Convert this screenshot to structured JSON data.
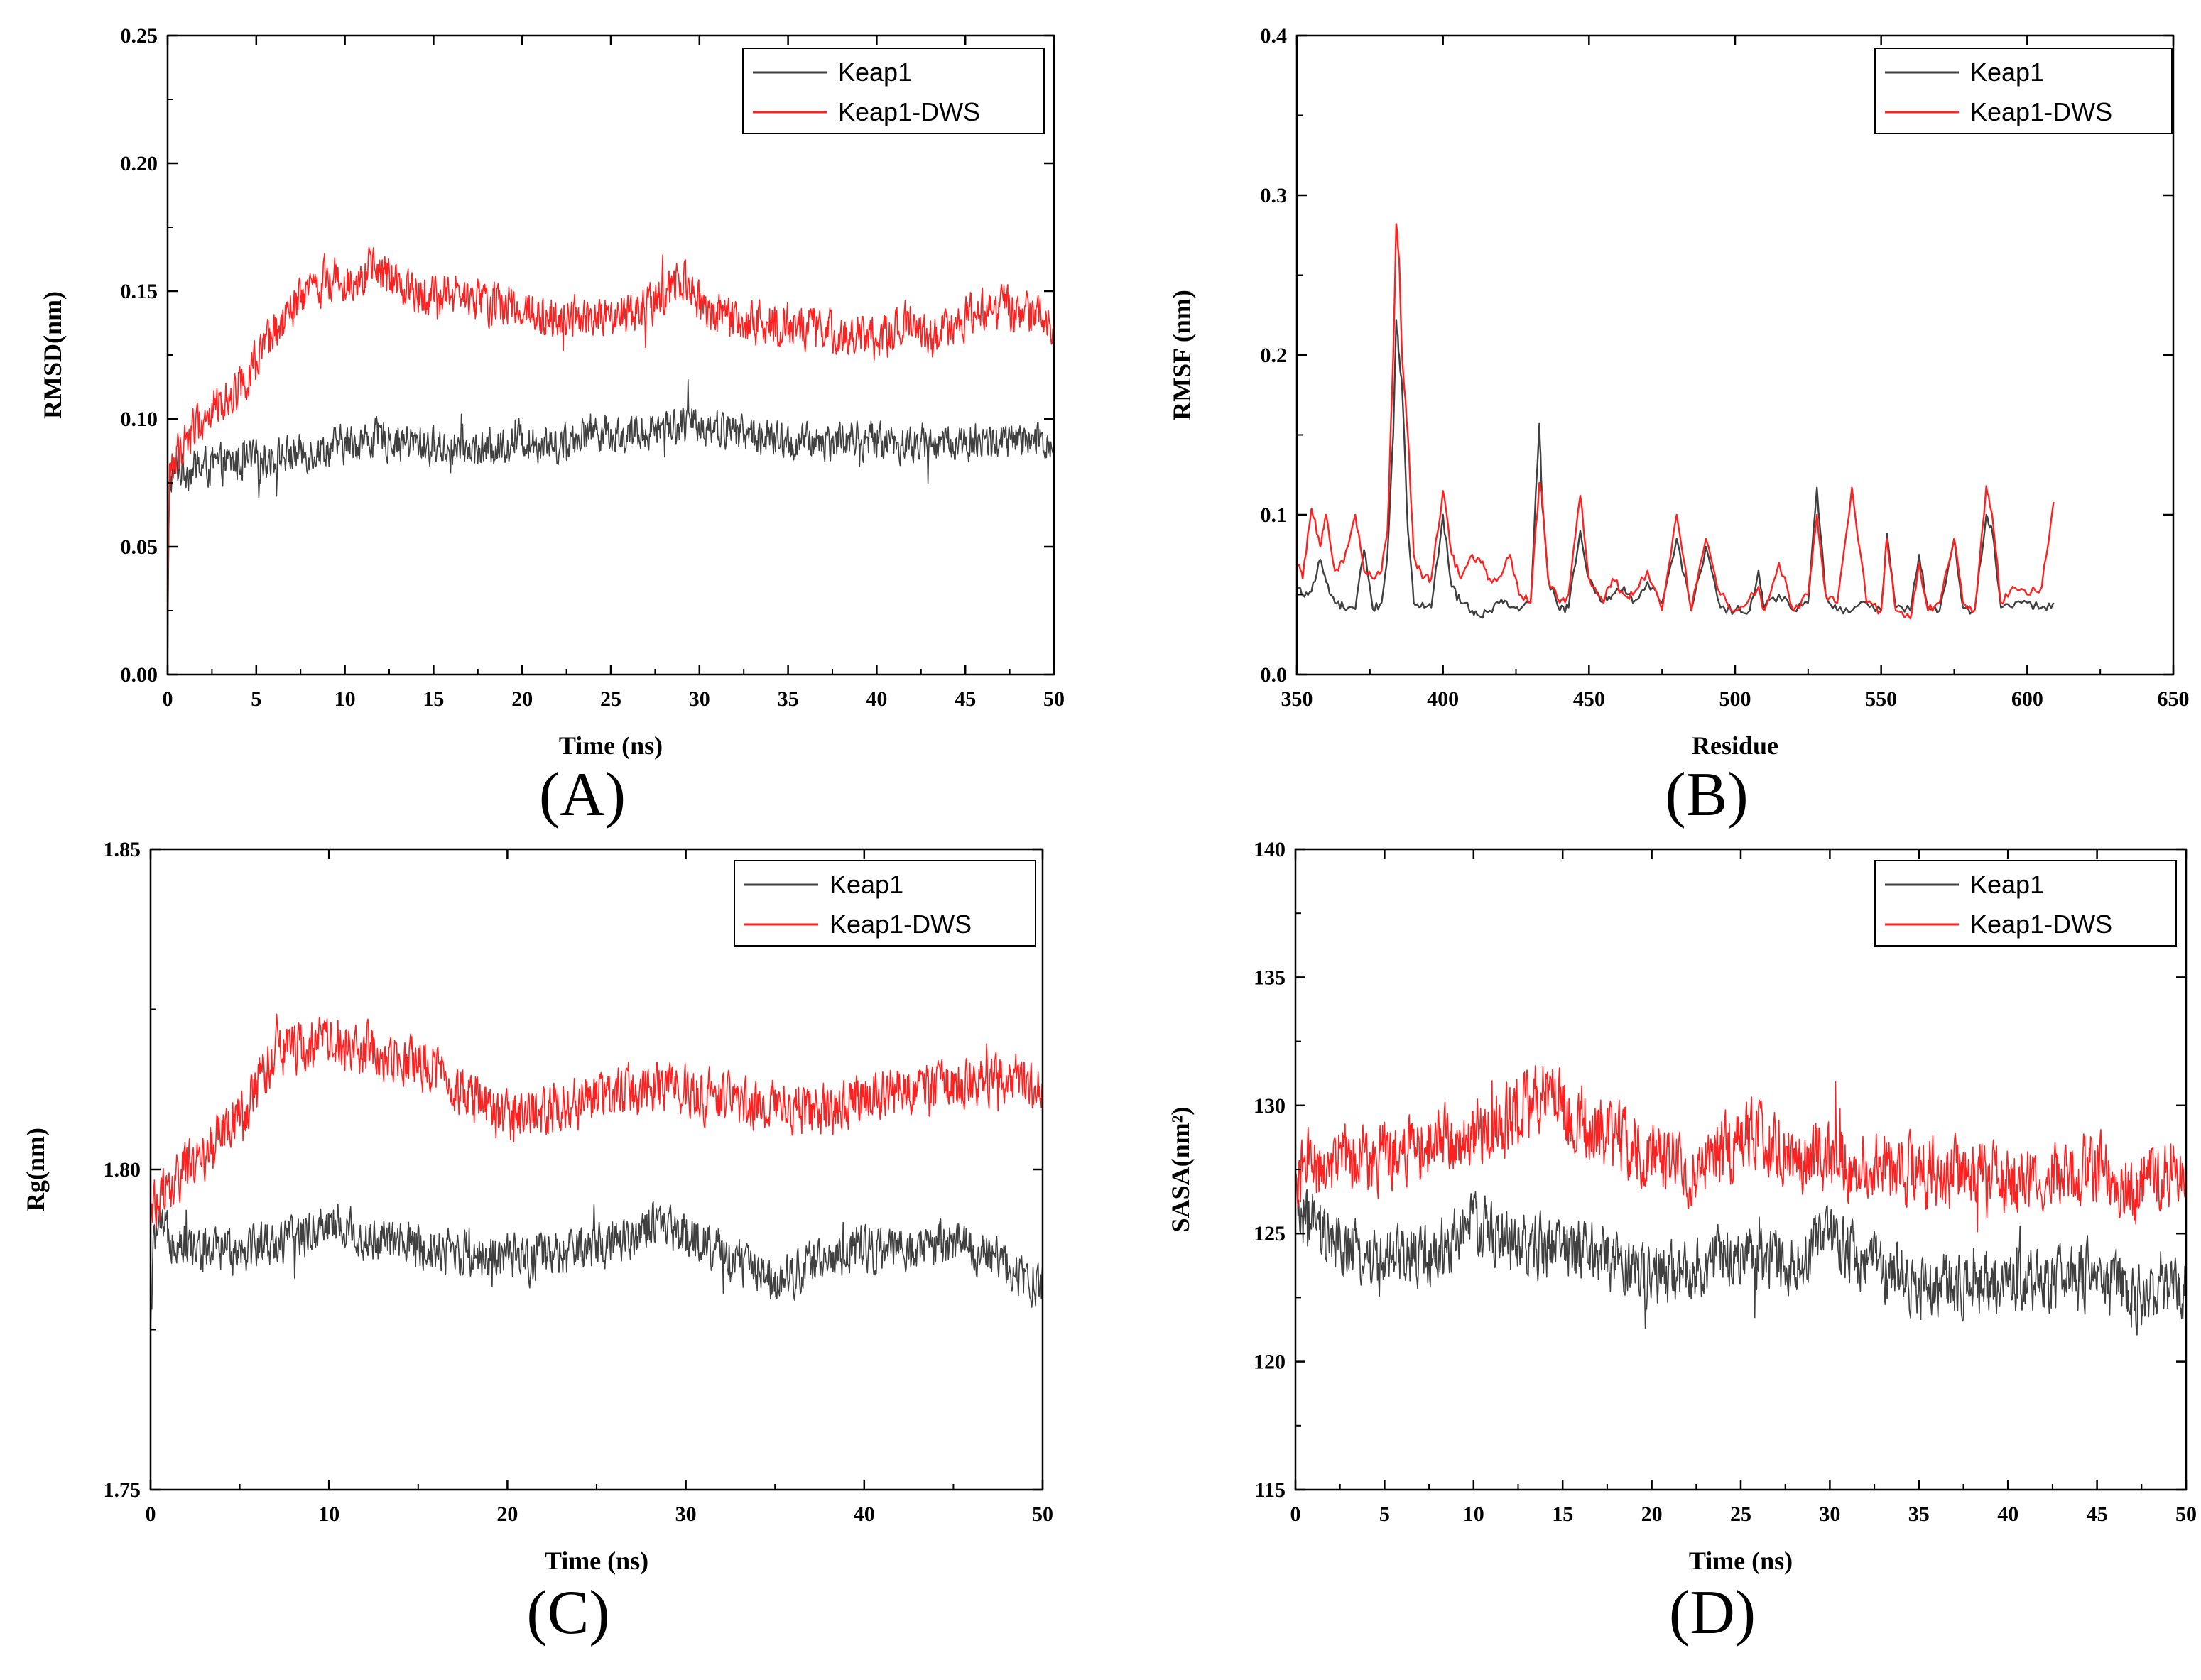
{
  "colors": {
    "keap1": "#404040",
    "keap1_dws": "#ff2020",
    "axis": "#000000"
  },
  "chart_data": [
    {
      "panel": "A",
      "panel_label": "(A)",
      "type": "line",
      "title": "",
      "xlabel": "Time (ns)",
      "ylabel": "RMSD(nm)",
      "xlim": [
        0,
        50
      ],
      "ylim": [
        0,
        0.25
      ],
      "xticks": [
        0,
        5,
        10,
        15,
        20,
        25,
        30,
        35,
        40,
        45,
        50
      ],
      "yticks": [
        "0.00",
        "0.05",
        "0.10",
        "0.15",
        "0.20",
        "0.25"
      ],
      "legend": "top-right",
      "series": [
        {
          "name": "Keap1",
          "color": "#404040",
          "noise": 0.0065,
          "x": [
            0,
            0.1,
            0.5,
            1,
            2,
            3,
            5,
            8,
            10,
            12,
            15,
            18,
            20,
            22,
            24,
            26,
            28,
            30,
            33,
            35,
            38,
            40,
            42,
            45,
            48,
            50
          ],
          "y": [
            0,
            0.075,
            0.081,
            0.08,
            0.081,
            0.082,
            0.084,
            0.087,
            0.09,
            0.093,
            0.089,
            0.088,
            0.092,
            0.09,
            0.096,
            0.093,
            0.098,
            0.098,
            0.094,
            0.09,
            0.092,
            0.092,
            0.09,
            0.091,
            0.091,
            0.09
          ]
        },
        {
          "name": "Keap1-DWS",
          "color": "#ff2020",
          "noise": 0.0075,
          "x": [
            0,
            0.1,
            0.5,
            1,
            2,
            3,
            4,
            5,
            6,
            7,
            8,
            9,
            10,
            11,
            12,
            13,
            15,
            17,
            20,
            22,
            25,
            28,
            29,
            30,
            32,
            35,
            38,
            40,
            42,
            43,
            45,
            47,
            50
          ],
          "y": [
            0,
            0.08,
            0.085,
            0.092,
            0.1,
            0.106,
            0.113,
            0.122,
            0.132,
            0.142,
            0.15,
            0.155,
            0.155,
            0.157,
            0.158,
            0.152,
            0.149,
            0.147,
            0.143,
            0.14,
            0.138,
            0.146,
            0.155,
            0.145,
            0.137,
            0.137,
            0.134,
            0.13,
            0.14,
            0.13,
            0.141,
            0.144,
            0.137
          ]
        }
      ]
    },
    {
      "panel": "B",
      "panel_label": "(B)",
      "type": "line",
      "title": "",
      "xlabel": "Residue",
      "ylabel": "RMSF (nm)",
      "xlim": [
        350,
        650
      ],
      "ylim": [
        0,
        0.4
      ],
      "xticks": [
        350,
        400,
        450,
        500,
        550,
        600,
        650
      ],
      "yticks": [
        "0.0",
        "0.1",
        "0.2",
        "0.3",
        "0.4"
      ],
      "legend": "top-right",
      "series": [
        {
          "name": "Keap1",
          "color": "#404040",
          "noise": 0,
          "x": [
            350,
            352,
            355,
            358,
            360,
            363,
            366,
            370,
            373,
            376,
            379,
            381,
            383,
            384,
            385,
            386,
            388,
            390,
            393,
            396,
            400,
            403,
            406,
            410,
            413,
            416,
            420,
            423,
            426,
            430,
            433,
            434,
            436,
            440,
            443,
            447,
            450,
            455,
            458,
            462,
            465,
            470,
            475,
            480,
            485,
            490,
            495,
            500,
            505,
            508,
            510,
            515,
            520,
            525,
            528,
            531,
            535,
            540,
            545,
            550,
            552,
            555,
            560,
            563,
            566,
            570,
            575,
            578,
            582,
            586,
            588,
            591,
            595,
            600,
            605,
            609
          ],
          "y": [
            0.055,
            0.05,
            0.052,
            0.072,
            0.058,
            0.045,
            0.042,
            0.041,
            0.078,
            0.041,
            0.045,
            0.075,
            0.15,
            0.222,
            0.2,
            0.18,
            0.09,
            0.045,
            0.045,
            0.042,
            0.1,
            0.055,
            0.045,
            0.04,
            0.036,
            0.04,
            0.047,
            0.042,
            0.04,
            0.045,
            0.157,
            0.105,
            0.06,
            0.04,
            0.042,
            0.09,
            0.06,
            0.045,
            0.05,
            0.055,
            0.045,
            0.058,
            0.045,
            0.085,
            0.04,
            0.08,
            0.042,
            0.04,
            0.04,
            0.065,
            0.042,
            0.05,
            0.04,
            0.045,
            0.117,
            0.05,
            0.04,
            0.04,
            0.045,
            0.04,
            0.088,
            0.042,
            0.04,
            0.075,
            0.042,
            0.04,
            0.085,
            0.042,
            0.04,
            0.1,
            0.09,
            0.042,
            0.042,
            0.045,
            0.042,
            0.045
          ]
        },
        {
          "name": "Keap1-DWS",
          "color": "#ff2020",
          "noise": 0,
          "x": [
            350,
            352,
            355,
            358,
            360,
            363,
            366,
            370,
            373,
            376,
            379,
            381,
            383,
            384,
            385,
            386,
            388,
            390,
            393,
            396,
            400,
            403,
            406,
            410,
            413,
            416,
            420,
            423,
            426,
            430,
            433,
            434,
            436,
            440,
            443,
            447,
            450,
            455,
            458,
            462,
            465,
            470,
            475,
            480,
            485,
            490,
            495,
            500,
            505,
            508,
            510,
            515,
            520,
            525,
            528,
            531,
            535,
            540,
            545,
            550,
            552,
            555,
            560,
            563,
            566,
            570,
            575,
            578,
            582,
            586,
            588,
            591,
            595,
            600,
            605,
            609
          ],
          "y": [
            0.07,
            0.06,
            0.104,
            0.08,
            0.1,
            0.065,
            0.07,
            0.1,
            0.065,
            0.06,
            0.065,
            0.09,
            0.2,
            0.282,
            0.26,
            0.2,
            0.15,
            0.075,
            0.06,
            0.06,
            0.115,
            0.075,
            0.06,
            0.075,
            0.07,
            0.06,
            0.062,
            0.075,
            0.05,
            0.045,
            0.12,
            0.11,
            0.06,
            0.045,
            0.05,
            0.112,
            0.06,
            0.045,
            0.06,
            0.05,
            0.05,
            0.065,
            0.04,
            0.1,
            0.04,
            0.085,
            0.05,
            0.04,
            0.048,
            0.055,
            0.04,
            0.07,
            0.04,
            0.05,
            0.1,
            0.05,
            0.045,
            0.117,
            0.045,
            0.04,
            0.085,
            0.04,
            0.035,
            0.07,
            0.04,
            0.045,
            0.085,
            0.045,
            0.04,
            0.118,
            0.1,
            0.045,
            0.055,
            0.05,
            0.055,
            0.108
          ]
        }
      ]
    },
    {
      "panel": "C",
      "panel_label": "(C)",
      "type": "line",
      "title": "",
      "xlabel": "Time (ns)",
      "ylabel": "Rg(nm)",
      "xlim": [
        0,
        50
      ],
      "ylim": [
        1.75,
        1.85
      ],
      "xticks": [
        0,
        10,
        20,
        30,
        40,
        50
      ],
      "yticks": [
        "1.75",
        "1.80",
        "1.85"
      ],
      "legend": "top-right",
      "series": [
        {
          "name": "Keap1",
          "color": "#404040",
          "noise": 0.0032,
          "x": [
            0,
            0.2,
            1,
            3,
            5,
            8,
            10,
            12,
            15,
            18,
            20,
            22,
            25,
            28,
            30,
            32,
            35,
            38,
            40,
            42,
            45,
            48,
            50
          ],
          "y": [
            1.775,
            1.79,
            1.79,
            1.787,
            1.788,
            1.789,
            1.792,
            1.789,
            1.788,
            1.787,
            1.786,
            1.786,
            1.788,
            1.791,
            1.79,
            1.787,
            1.783,
            1.786,
            1.788,
            1.787,
            1.789,
            1.785,
            1.782
          ]
        },
        {
          "name": "Keap1-DWS",
          "color": "#ff2020",
          "noise": 0.0035,
          "x": [
            0,
            0.2,
            1,
            2,
            3,
            4,
            5,
            6,
            7,
            8,
            10,
            12,
            14,
            16,
            18,
            20,
            22,
            25,
            28,
            30,
            32,
            35,
            38,
            40,
            42,
            45,
            48,
            50
          ],
          "y": [
            1.79,
            1.795,
            1.797,
            1.8,
            1.802,
            1.806,
            1.808,
            1.813,
            1.818,
            1.819,
            1.82,
            1.819,
            1.817,
            1.816,
            1.811,
            1.808,
            1.809,
            1.811,
            1.813,
            1.812,
            1.811,
            1.81,
            1.809,
            1.811,
            1.812,
            1.813,
            1.815,
            1.811
          ]
        }
      ]
    },
    {
      "panel": "D",
      "panel_label": "(D)",
      "type": "line",
      "title": "",
      "xlabel": "Time (ns)",
      "ylabel": "SASA(nm²)",
      "xlim": [
        0,
        50
      ],
      "ylim": [
        115,
        140
      ],
      "xticks": [
        0,
        5,
        10,
        15,
        20,
        25,
        30,
        35,
        40,
        45,
        50
      ],
      "yticks": [
        "115",
        "120",
        "125",
        "130",
        "135",
        "140"
      ],
      "legend": "top-right",
      "series": [
        {
          "name": "Keap1",
          "color": "#404040",
          "noise": 1.1,
          "x": [
            0,
            2,
            5,
            8,
            10,
            12,
            15,
            18,
            20,
            22,
            25,
            28,
            30,
            32,
            35,
            38,
            40,
            42,
            45,
            47,
            50
          ],
          "y": [
            126.0,
            124.5,
            123.8,
            124.2,
            125.5,
            124.5,
            124.5,
            124.0,
            123.2,
            123.5,
            124.2,
            123.8,
            124.8,
            124.0,
            123.0,
            123.0,
            123.2,
            123.2,
            123.4,
            122.5,
            122.8
          ]
        },
        {
          "name": "Keap1-DWS",
          "color": "#ff2020",
          "noise": 1.2,
          "x": [
            0,
            2,
            5,
            8,
            10,
            12,
            14,
            15,
            17,
            20,
            22,
            25,
            26,
            28,
            30,
            32,
            35,
            38,
            40,
            42,
            45,
            47,
            50
          ],
          "y": [
            127.5,
            127.8,
            128.0,
            128.5,
            128.8,
            129.5,
            130.5,
            130.0,
            129.0,
            128.0,
            127.5,
            128.5,
            129.0,
            128.0,
            128.0,
            127.5,
            127.5,
            127.2,
            127.0,
            127.3,
            127.5,
            126.8,
            127.5
          ]
        }
      ]
    }
  ]
}
